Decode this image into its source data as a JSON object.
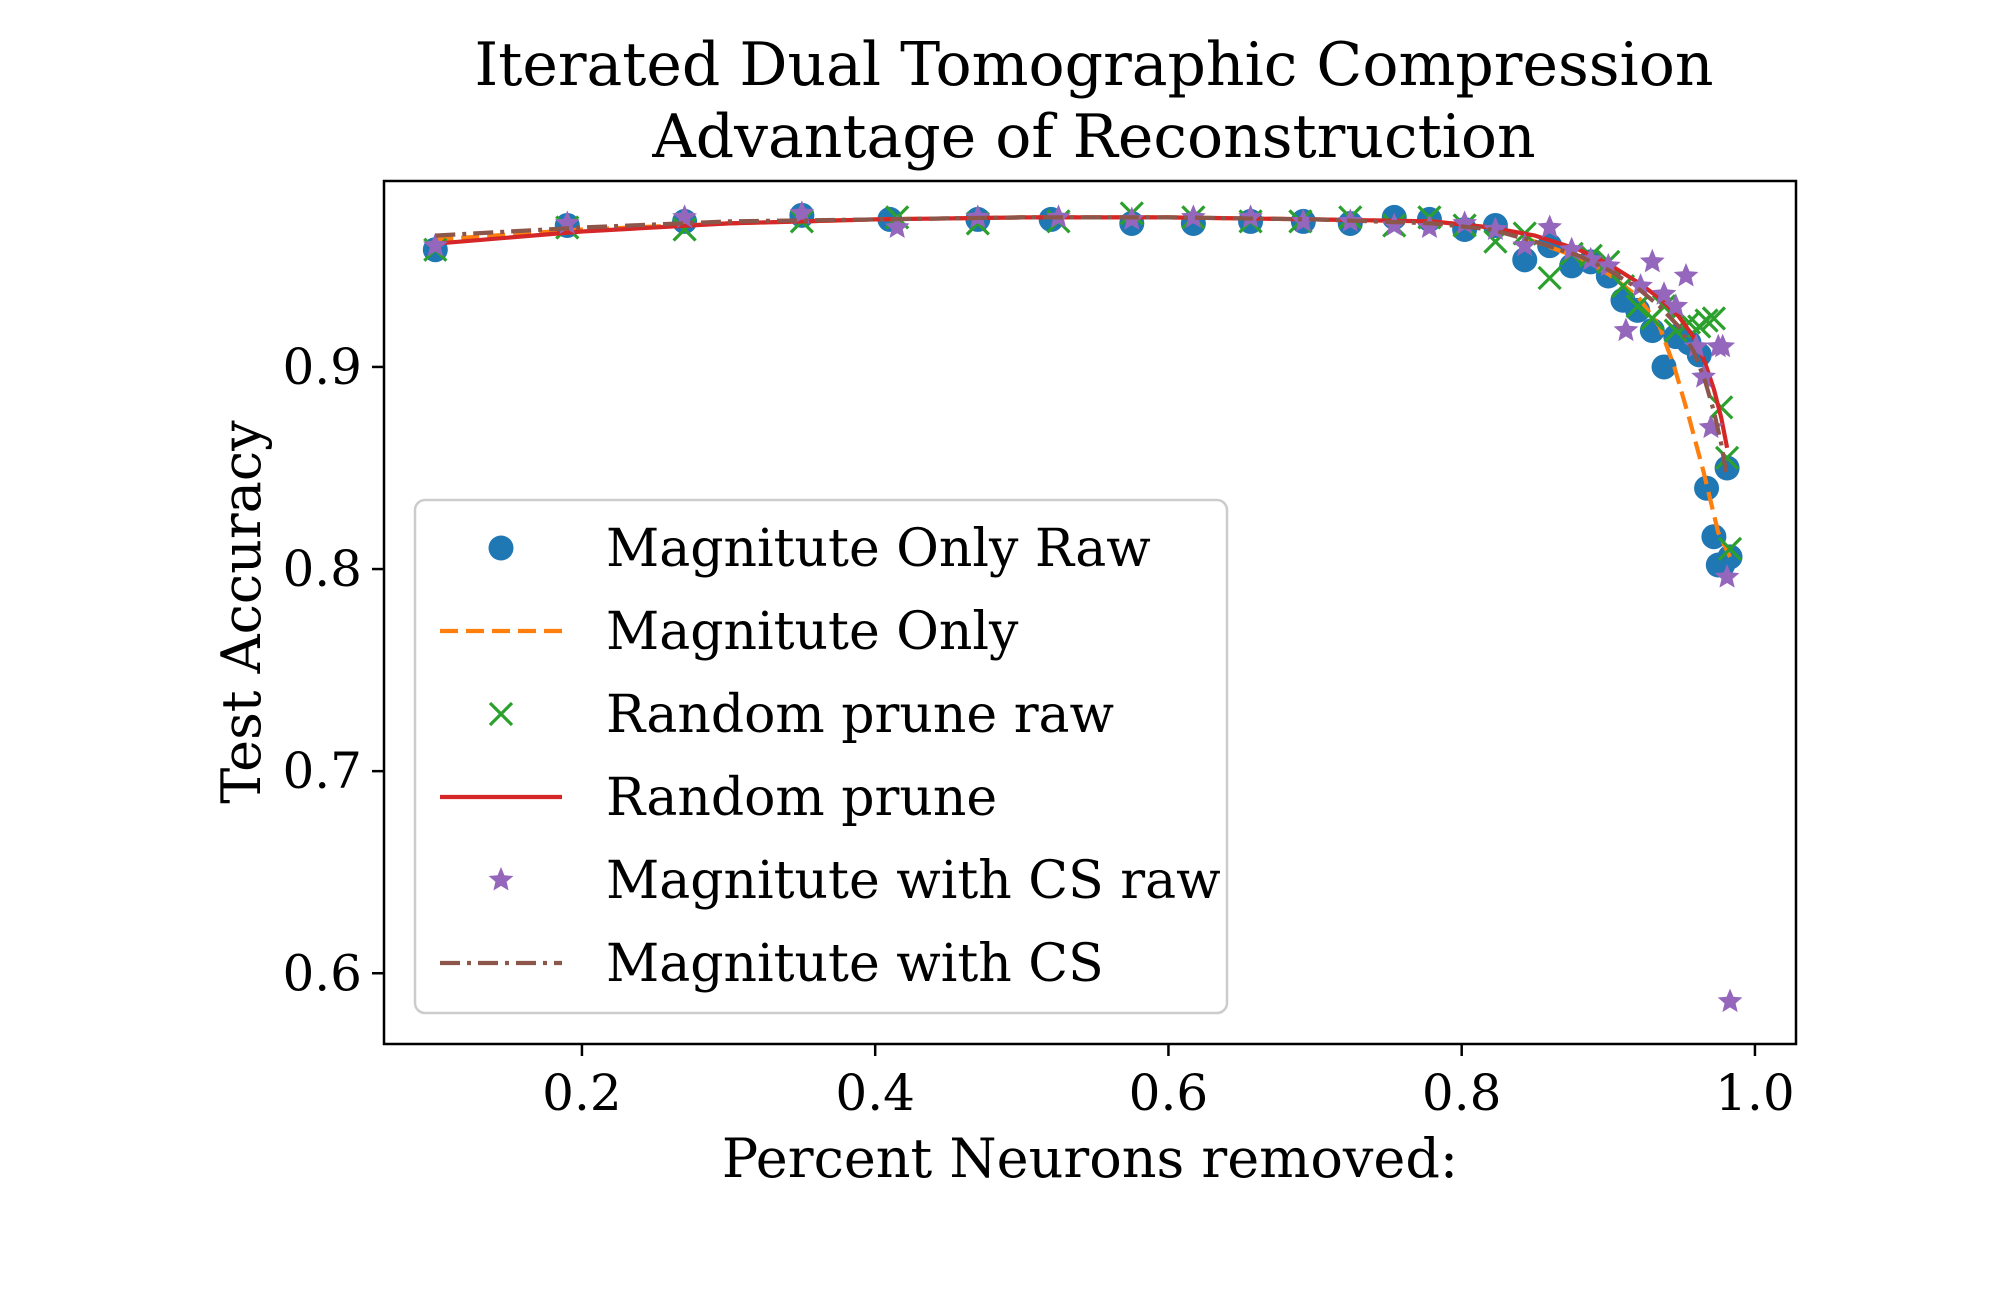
{
  "chart_data": {
    "type": "scatter",
    "title": [
      "Iterated Dual Tomographic Compression",
      "Advantage of Reconstruction"
    ],
    "xlabel": "Percent Neurons removed:",
    "ylabel": "Test Accuracy",
    "xlim": [
      0.065,
      1.028
    ],
    "ylim": [
      0.565,
      0.992
    ],
    "xticks": [
      0.2,
      0.4,
      0.6,
      0.8,
      1.0
    ],
    "xtick_labels": [
      "0.2",
      "0.4",
      "0.6",
      "0.8",
      "1.0"
    ],
    "yticks": [
      0.6,
      0.7,
      0.8,
      0.9
    ],
    "ytick_labels": [
      "0.6",
      "0.7",
      "0.8",
      "0.9"
    ],
    "grid": false,
    "legend_position": "lower-left",
    "series": [
      {
        "name": "Magnitute Only Raw",
        "kind": "scatter",
        "marker": "circle",
        "color": "#1f77b4",
        "points": [
          [
            0.1,
            0.958
          ],
          [
            0.19,
            0.97
          ],
          [
            0.27,
            0.972
          ],
          [
            0.35,
            0.975
          ],
          [
            0.41,
            0.973
          ],
          [
            0.47,
            0.973
          ],
          [
            0.52,
            0.973
          ],
          [
            0.575,
            0.971
          ],
          [
            0.617,
            0.971
          ],
          [
            0.656,
            0.972
          ],
          [
            0.692,
            0.972
          ],
          [
            0.724,
            0.971
          ],
          [
            0.754,
            0.974
          ],
          [
            0.778,
            0.973
          ],
          [
            0.802,
            0.968
          ],
          [
            0.823,
            0.97
          ],
          [
            0.843,
            0.953
          ],
          [
            0.86,
            0.96
          ],
          [
            0.875,
            0.95
          ],
          [
            0.888,
            0.952
          ],
          [
            0.9,
            0.945
          ],
          [
            0.91,
            0.933
          ],
          [
            0.92,
            0.928
          ],
          [
            0.93,
            0.918
          ],
          [
            0.938,
            0.9
          ],
          [
            0.946,
            0.915
          ],
          [
            0.955,
            0.912
          ],
          [
            0.962,
            0.906
          ],
          [
            0.967,
            0.84
          ],
          [
            0.972,
            0.816
          ],
          [
            0.975,
            0.802
          ],
          [
            0.978,
            0.802
          ],
          [
            0.981,
            0.85
          ],
          [
            0.983,
            0.806
          ]
        ]
      },
      {
        "name": "Magnitute Only",
        "kind": "line",
        "dash": "dashed",
        "color": "#ff7f0e",
        "points": [
          [
            0.1,
            0.963
          ],
          [
            0.2,
            0.968
          ],
          [
            0.3,
            0.971
          ],
          [
            0.4,
            0.973
          ],
          [
            0.5,
            0.974
          ],
          [
            0.6,
            0.974
          ],
          [
            0.7,
            0.973
          ],
          [
            0.78,
            0.972
          ],
          [
            0.82,
            0.969
          ],
          [
            0.85,
            0.962
          ],
          [
            0.88,
            0.954
          ],
          [
            0.9,
            0.946
          ],
          [
            0.92,
            0.935
          ],
          [
            0.935,
            0.92
          ],
          [
            0.945,
            0.9
          ],
          [
            0.955,
            0.875
          ],
          [
            0.965,
            0.848
          ],
          [
            0.975,
            0.818
          ],
          [
            0.983,
            0.806
          ]
        ]
      },
      {
        "name": "Random prune raw",
        "kind": "scatter",
        "marker": "x",
        "color": "#2ca02c",
        "points": [
          [
            0.1,
            0.958
          ],
          [
            0.19,
            0.969
          ],
          [
            0.27,
            0.968
          ],
          [
            0.35,
            0.972
          ],
          [
            0.415,
            0.974
          ],
          [
            0.47,
            0.971
          ],
          [
            0.525,
            0.972
          ],
          [
            0.575,
            0.976
          ],
          [
            0.617,
            0.974
          ],
          [
            0.656,
            0.972
          ],
          [
            0.69,
            0.972
          ],
          [
            0.724,
            0.974
          ],
          [
            0.754,
            0.97
          ],
          [
            0.778,
            0.974
          ],
          [
            0.802,
            0.97
          ],
          [
            0.823,
            0.962
          ],
          [
            0.843,
            0.966
          ],
          [
            0.86,
            0.944
          ],
          [
            0.875,
            0.956
          ],
          [
            0.888,
            0.955
          ],
          [
            0.9,
            0.952
          ],
          [
            0.91,
            0.94
          ],
          [
            0.92,
            0.93
          ],
          [
            0.93,
            0.924
          ],
          [
            0.938,
            0.93
          ],
          [
            0.946,
            0.918
          ],
          [
            0.955,
            0.922
          ],
          [
            0.962,
            0.92
          ],
          [
            0.967,
            0.923
          ],
          [
            0.972,
            0.924
          ],
          [
            0.977,
            0.88
          ],
          [
            0.981,
            0.855
          ],
          [
            0.983,
            0.81
          ]
        ]
      },
      {
        "name": "Random prune",
        "kind": "line",
        "dash": "solid",
        "color": "#d62728",
        "points": [
          [
            0.1,
            0.961
          ],
          [
            0.2,
            0.967
          ],
          [
            0.3,
            0.971
          ],
          [
            0.4,
            0.973
          ],
          [
            0.5,
            0.974
          ],
          [
            0.6,
            0.974
          ],
          [
            0.7,
            0.973
          ],
          [
            0.78,
            0.972
          ],
          [
            0.82,
            0.969
          ],
          [
            0.85,
            0.965
          ],
          [
            0.88,
            0.958
          ],
          [
            0.9,
            0.951
          ],
          [
            0.92,
            0.942
          ],
          [
            0.935,
            0.934
          ],
          [
            0.948,
            0.925
          ],
          [
            0.958,
            0.915
          ],
          [
            0.966,
            0.902
          ],
          [
            0.972,
            0.889
          ],
          [
            0.977,
            0.875
          ],
          [
            0.981,
            0.86
          ]
        ]
      },
      {
        "name": "Magnitute with CS raw",
        "kind": "scatter",
        "marker": "star",
        "color": "#9467bd",
        "points": [
          [
            0.1,
            0.96
          ],
          [
            0.19,
            0.971
          ],
          [
            0.27,
            0.974
          ],
          [
            0.35,
            0.976
          ],
          [
            0.415,
            0.969
          ],
          [
            0.47,
            0.974
          ],
          [
            0.525,
            0.974
          ],
          [
            0.575,
            0.973
          ],
          [
            0.617,
            0.974
          ],
          [
            0.656,
            0.974
          ],
          [
            0.692,
            0.972
          ],
          [
            0.724,
            0.972
          ],
          [
            0.754,
            0.97
          ],
          [
            0.778,
            0.969
          ],
          [
            0.802,
            0.971
          ],
          [
            0.823,
            0.968
          ],
          [
            0.843,
            0.96
          ],
          [
            0.86,
            0.969
          ],
          [
            0.875,
            0.958
          ],
          [
            0.888,
            0.953
          ],
          [
            0.9,
            0.95
          ],
          [
            0.912,
            0.918
          ],
          [
            0.922,
            0.94
          ],
          [
            0.93,
            0.952
          ],
          [
            0.938,
            0.936
          ],
          [
            0.946,
            0.93
          ],
          [
            0.953,
            0.945
          ],
          [
            0.96,
            0.91
          ],
          [
            0.965,
            0.895
          ],
          [
            0.97,
            0.87
          ],
          [
            0.975,
            0.91
          ],
          [
            0.978,
            0.91
          ],
          [
            0.981,
            0.796
          ],
          [
            0.983,
            0.586
          ]
        ]
      },
      {
        "name": "Magnitute with CS",
        "kind": "line",
        "dash": "dashdot",
        "color": "#8c564b",
        "points": [
          [
            0.1,
            0.965
          ],
          [
            0.2,
            0.969
          ],
          [
            0.3,
            0.972
          ],
          [
            0.4,
            0.973
          ],
          [
            0.5,
            0.974
          ],
          [
            0.6,
            0.974
          ],
          [
            0.7,
            0.973
          ],
          [
            0.78,
            0.971
          ],
          [
            0.82,
            0.968
          ],
          [
            0.85,
            0.962
          ],
          [
            0.88,
            0.955
          ],
          [
            0.9,
            0.948
          ],
          [
            0.92,
            0.939
          ],
          [
            0.935,
            0.93
          ],
          [
            0.948,
            0.92
          ],
          [
            0.958,
            0.908
          ],
          [
            0.966,
            0.893
          ],
          [
            0.972,
            0.878
          ],
          [
            0.977,
            0.862
          ],
          [
            0.981,
            0.845
          ]
        ]
      }
    ]
  }
}
